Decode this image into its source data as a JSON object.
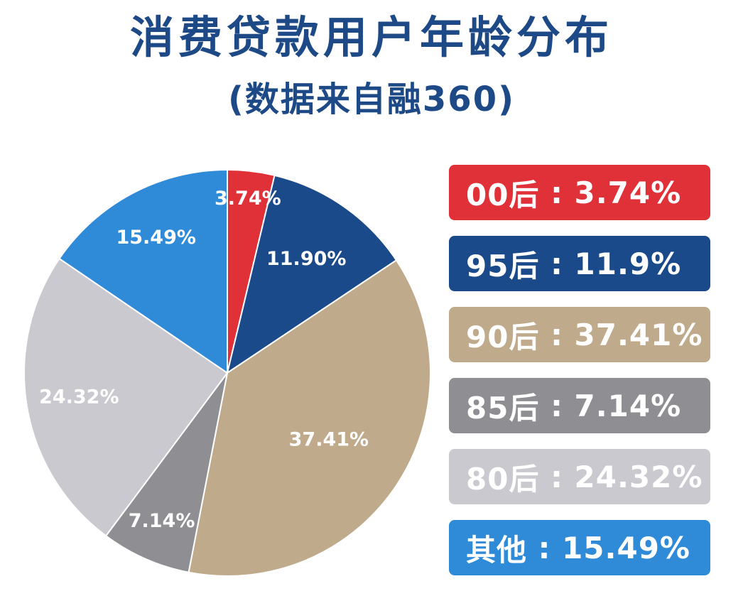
{
  "title": "消费贷款用户年龄分布",
  "subtitle": "(数据来自融360)",
  "legend": [
    {
      "label": "00后",
      "value": "3.74%",
      "color": "#e03138"
    },
    {
      "label": "95后",
      "value": "11.9%",
      "color": "#1b4a8a"
    },
    {
      "label": "90后",
      "value": "37.41%",
      "color": "#bfaa8b"
    },
    {
      "label": "85后",
      "value": "7.14%",
      "color": "#8e8e93"
    },
    {
      "label": "80后",
      "value": "24.32%",
      "color": "#c9c9cf"
    },
    {
      "label": "其他",
      "value": "15.49%",
      "color": "#2f8ad8"
    }
  ],
  "chart_data": {
    "type": "pie",
    "title": "消费贷款用户年龄分布",
    "subtitle": "(数据来自融360)",
    "categories": [
      "00后",
      "95后",
      "90后",
      "85后",
      "80后",
      "其他"
    ],
    "values": [
      3.74,
      11.9,
      37.41,
      7.14,
      24.32,
      15.49
    ],
    "data_labels": [
      "3.74%",
      "11.90%",
      "37.41%",
      "7.14%",
      "24.32%",
      "15.49%"
    ],
    "colors": [
      "#e03138",
      "#1b4a8a",
      "#bfaa8b",
      "#8e8e93",
      "#c9c9cf",
      "#2f8ad8"
    ],
    "legend_position": "right"
  }
}
